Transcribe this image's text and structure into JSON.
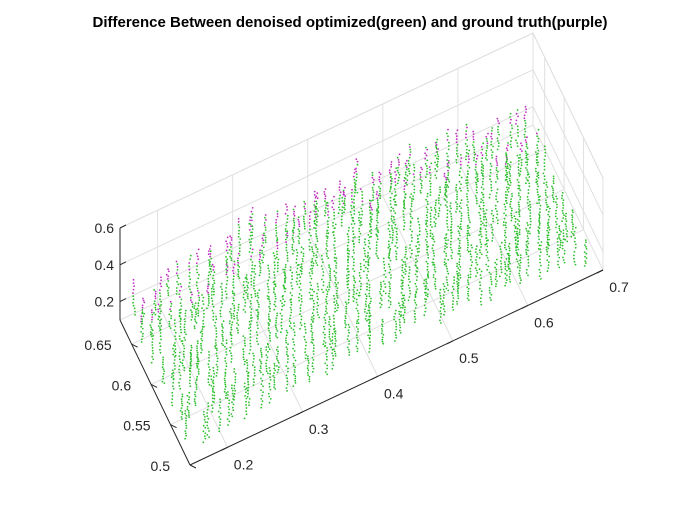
{
  "chart_data": {
    "type": "scatter",
    "title": "Difference Between denoised optimized(green) and ground truth(purple)",
    "xlabel": "",
    "ylabel": "",
    "zlabel": "",
    "projection": "3d",
    "grid": true,
    "legend": "none",
    "xlim": [
      0.15,
      0.7
    ],
    "ylim": [
      0.5,
      0.68
    ],
    "zlim": [
      0.1,
      0.6
    ],
    "x_ticks": [
      "0.2",
      "0.3",
      "0.4",
      "0.5",
      "0.6",
      "0.7"
    ],
    "y_ticks": [
      "0.5",
      "0.55",
      "0.6",
      "0.65"
    ],
    "z_ticks": [
      "0.2",
      "0.4",
      "0.6"
    ],
    "series": [
      {
        "color": "#33cc33",
        "marker": "dot",
        "description_values": "dense point cloud of vertical dotted strands forming a curved surface, x 0.15-0.7, y 0.5-0.68, z 0.1-0.4"
      },
      {
        "color": "#cc33cc",
        "marker": "dot",
        "description_values": "ground truth dots slightly above the green surface along the back edge"
      }
    ],
    "colors": {
      "green": "#2fbf2f",
      "purple": "#c030c0",
      "axis": "#262626",
      "grid": "#e0e0e0"
    }
  }
}
